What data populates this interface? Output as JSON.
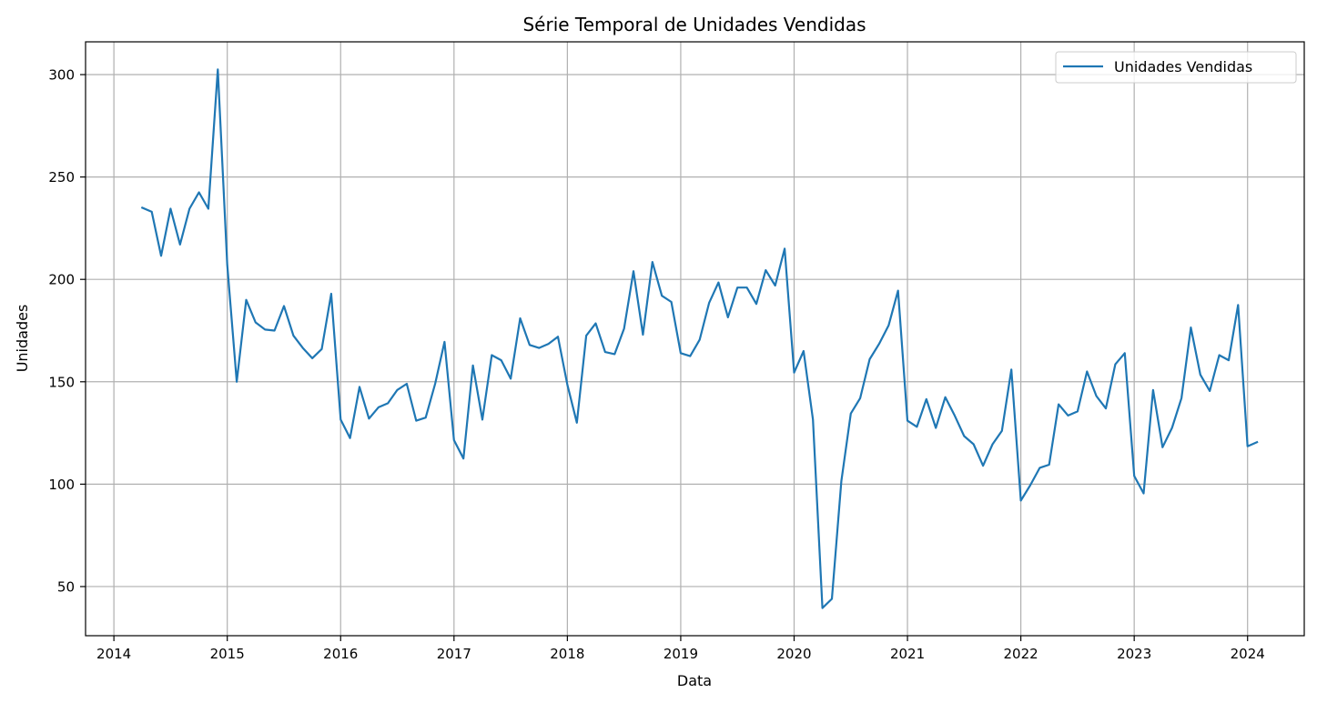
{
  "chart_data": {
    "type": "line",
    "title": "Série Temporal de Unidades Vendidas",
    "xlabel": "Data",
    "ylabel": "Unidades",
    "x_ticks": [
      "2014",
      "2015",
      "2016",
      "2017",
      "2018",
      "2019",
      "2020",
      "2021",
      "2022",
      "2023",
      "2024"
    ],
    "y_ticks": [
      "50",
      "100",
      "150",
      "200",
      "250",
      "300"
    ],
    "xlim": [
      "2013-10",
      "2024-07"
    ],
    "ylim": [
      26,
      316
    ],
    "grid": true,
    "legend_position": "top-right",
    "series": [
      {
        "name": "Unidades Vendidas",
        "color": "#1f77b4",
        "x": [
          "2014-04",
          "2014-05",
          "2014-06",
          "2014-07",
          "2014-08",
          "2014-09",
          "2014-10",
          "2014-11",
          "2014-12",
          "2015-01",
          "2015-02",
          "2015-03",
          "2015-04",
          "2015-05",
          "2015-06",
          "2015-07",
          "2015-08",
          "2015-09",
          "2015-10",
          "2015-11",
          "2015-12",
          "2016-01",
          "2016-02",
          "2016-03",
          "2016-04",
          "2016-05",
          "2016-06",
          "2016-07",
          "2016-08",
          "2016-09",
          "2016-10",
          "2016-11",
          "2016-12",
          "2017-01",
          "2017-02",
          "2017-03",
          "2017-04",
          "2017-05",
          "2017-06",
          "2017-07",
          "2017-08",
          "2017-09",
          "2017-10",
          "2017-11",
          "2017-12",
          "2018-01",
          "2018-02",
          "2018-03",
          "2018-04",
          "2018-05",
          "2018-06",
          "2018-07",
          "2018-08",
          "2018-09",
          "2018-10",
          "2018-11",
          "2018-12",
          "2019-01",
          "2019-02",
          "2019-03",
          "2019-04",
          "2019-05",
          "2019-06",
          "2019-07",
          "2019-08",
          "2019-09",
          "2019-10",
          "2019-11",
          "2019-12",
          "2020-01",
          "2020-02",
          "2020-03",
          "2020-04",
          "2020-05",
          "2020-06",
          "2020-07",
          "2020-08",
          "2020-09",
          "2020-10",
          "2020-11",
          "2020-12",
          "2021-01",
          "2021-02",
          "2021-03",
          "2021-04",
          "2021-05",
          "2021-06",
          "2021-07",
          "2021-08",
          "2021-09",
          "2021-10",
          "2021-11",
          "2021-12",
          "2022-01",
          "2022-02",
          "2022-03",
          "2022-04",
          "2022-05",
          "2022-06",
          "2022-07",
          "2022-08",
          "2022-09",
          "2022-10",
          "2022-11",
          "2022-12",
          "2023-01",
          "2023-02",
          "2023-03",
          "2023-04",
          "2023-05",
          "2023-06",
          "2023-07",
          "2023-08",
          "2023-09",
          "2023-10",
          "2023-11",
          "2023-12",
          "2024-01",
          "2024-02"
        ],
        "values": [
          235,
          233,
          211.5,
          234.5,
          217,
          234.5,
          242.5,
          234.5,
          302.5,
          207,
          150,
          190,
          179,
          175.5,
          175,
          187,
          172.5,
          166.5,
          161.5,
          166,
          193,
          131.5,
          122.5,
          147.5,
          132,
          137.5,
          139.5,
          146,
          149,
          131,
          132.5,
          149,
          169.5,
          121.5,
          112.5,
          158,
          131.5,
          163,
          160.5,
          151.5,
          181,
          168,
          166.5,
          168.5,
          172,
          148.5,
          130,
          172.5,
          178.5,
          164.5,
          163.5,
          176,
          204,
          173,
          208.5,
          192,
          189,
          164,
          162.5,
          170.5,
          188.5,
          198.5,
          181.5,
          196,
          196,
          188,
          204.5,
          197,
          215,
          154.5,
          165,
          131.5,
          39.5,
          44,
          101.5,
          134.5,
          142,
          161,
          168.5,
          177.5,
          194.5,
          131,
          128,
          141.5,
          127.5,
          142.5,
          133.5,
          123.5,
          119.5,
          109,
          119.5,
          126,
          156,
          92,
          99.5,
          108,
          109.5,
          139,
          133.5,
          135.5,
          155,
          143,
          137,
          158.5,
          164,
          104,
          95.5,
          146,
          118,
          127.5,
          142,
          176.5,
          153.5,
          145.5,
          163,
          160.5,
          187.5,
          118.5,
          120.5
        ]
      }
    ]
  }
}
